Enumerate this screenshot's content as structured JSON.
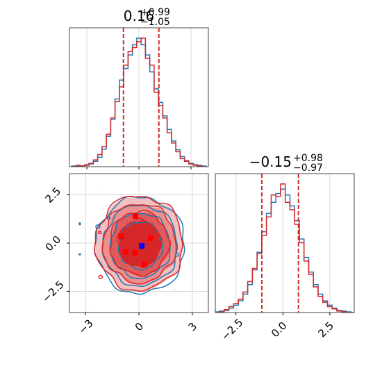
{
  "chart_data": [
    {
      "type": "histogram",
      "panel": "marginal-x",
      "title_value": "0.16",
      "title_plus": "+0.99",
      "title_minus": "−1.05",
      "xlim": [
        -4,
        4
      ],
      "quantile_lines": [
        -0.89,
        1.15
      ],
      "bin_centers": [
        -3.75,
        -3.5,
        -3.25,
        -3.0,
        -2.75,
        -2.5,
        -2.25,
        -2.0,
        -1.75,
        -1.5,
        -1.25,
        -1.0,
        -0.75,
        -0.5,
        -0.25,
        0.0,
        0.25,
        0.5,
        0.75,
        1.0,
        1.25,
        1.5,
        1.75,
        2.0,
        2.25,
        2.5,
        2.75,
        3.0,
        3.25,
        3.5,
        3.75
      ],
      "series": [
        {
          "name": "",
          "color": "#1f77b4",
          "values": [
            1,
            1,
            1,
            3,
            4,
            8,
            14,
            26,
            45,
            70,
            100,
            128,
            145,
            165,
            180,
            190,
            180,
            165,
            140,
            115,
            95,
            75,
            55,
            38,
            25,
            15,
            9,
            5,
            3,
            2,
            1
          ]
        },
        {
          "name": "",
          "color": "#d62728",
          "values": [
            0,
            2,
            1,
            2,
            5,
            10,
            18,
            30,
            48,
            72,
            96,
            118,
            150,
            170,
            176,
            185,
            190,
            160,
            150,
            110,
            90,
            72,
            50,
            35,
            22,
            12,
            8,
            4,
            2,
            1,
            0
          ]
        }
      ]
    },
    {
      "type": "contour",
      "panel": "2d-density",
      "xlim": [
        -3.9,
        3.9
      ],
      "ylim": [
        -3.6,
        3.6
      ],
      "xticks": [
        "−3",
        "0",
        "3"
      ],
      "xtick_values": [
        -3,
        0,
        3
      ],
      "yticks": [
        "−2.5",
        "0.0",
        "2.5"
      ],
      "ytick_values": [
        -2.5,
        0.0,
        2.5
      ],
      "contour_radii": [
        1.2,
        1.65,
        2.05,
        2.45
      ],
      "red_markers": [
        [
          -1.0,
          0.35
        ],
        [
          -0.2,
          1.4
        ],
        [
          0.65,
          0.25
        ],
        [
          -0.75,
          -0.45
        ],
        [
          -0.2,
          -0.5
        ],
        [
          0.3,
          -1.1
        ]
      ],
      "blue_marker": [
        0.16,
        -0.15
      ],
      "series": [
        {
          "name": "",
          "color": "#1f77b4"
        },
        {
          "name": "",
          "color": "#d62728"
        }
      ]
    },
    {
      "type": "histogram",
      "panel": "marginal-y",
      "title_value": "−0.15",
      "title_plus": "+0.98",
      "title_minus": "−0.97",
      "xlim": [
        -3.6,
        3.8
      ],
      "xticks": [
        "−2.5",
        "0.0",
        "2.5"
      ],
      "xtick_values": [
        -2.5,
        0.0,
        2.5
      ],
      "quantile_lines": [
        -1.12,
        0.83
      ],
      "bin_centers": [
        -3.5,
        -3.25,
        -3.0,
        -2.75,
        -2.5,
        -2.25,
        -2.0,
        -1.75,
        -1.5,
        -1.25,
        -1.0,
        -0.75,
        -0.5,
        -0.25,
        0.0,
        0.25,
        0.5,
        0.75,
        1.0,
        1.25,
        1.5,
        1.75,
        2.0,
        2.25,
        2.5,
        2.75,
        3.0,
        3.25,
        3.5,
        3.75
      ],
      "series": [
        {
          "name": "",
          "color": "#1f77b4",
          "values": [
            1,
            2,
            3,
            6,
            10,
            16,
            25,
            38,
            58,
            82,
            110,
            135,
            150,
            162,
            168,
            160,
            145,
            125,
            100,
            75,
            55,
            38,
            25,
            16,
            10,
            6,
            3,
            2,
            1,
            0
          ]
        },
        {
          "name": "",
          "color": "#d62728",
          "values": [
            0,
            1,
            4,
            8,
            12,
            18,
            28,
            42,
            60,
            80,
            105,
            130,
            160,
            158,
            175,
            150,
            140,
            120,
            95,
            70,
            52,
            35,
            22,
            14,
            8,
            5,
            2,
            1,
            0,
            0
          ]
        }
      ]
    }
  ]
}
